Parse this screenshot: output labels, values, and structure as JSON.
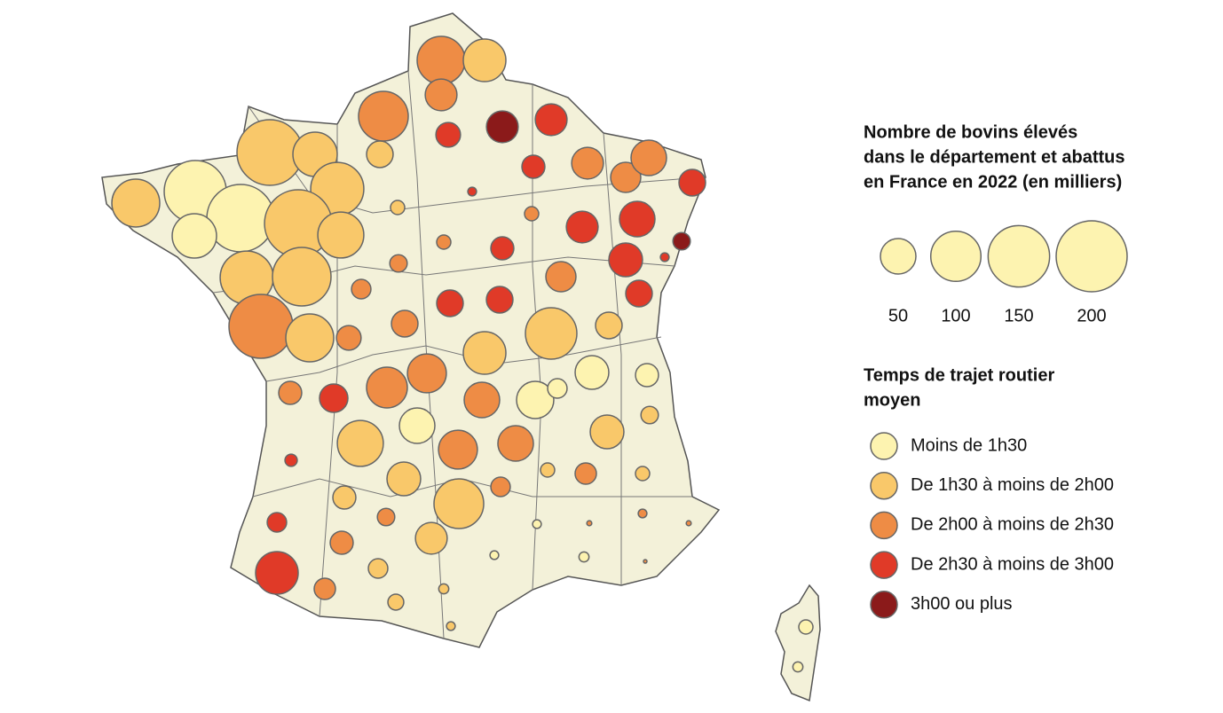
{
  "legend_size": {
    "title": [
      "Nombre de bovins élevés",
      "dans le département et abattus",
      "en France en 2022 (en milliers)"
    ],
    "values": [
      50,
      100,
      150,
      200
    ],
    "color": "#fdf3b0"
  },
  "legend_color": {
    "title": [
      "Temps de trajet routier",
      "moyen"
    ],
    "categories": [
      {
        "label": "Moins de 1h30",
        "color": "#fdf3b0"
      },
      {
        "label": "De 1h30 à moins de 2h00",
        "color": "#f9c86a"
      },
      {
        "label": "De 2h00 à moins de 2h30",
        "color": "#ee8c45"
      },
      {
        "label": "De 2h30 à moins de 3h00",
        "color": "#e03a28"
      },
      {
        "label": "3h00 ou plus",
        "color": "#8b1a1a"
      }
    ]
  },
  "bubbles": [
    {
      "value": 91,
      "category": 2
    },
    {
      "value": 72,
      "category": 1
    },
    {
      "value": 40,
      "category": 2
    },
    {
      "value": 98,
      "category": 2
    },
    {
      "value": 24,
      "category": 3
    },
    {
      "value": 40,
      "category": 4
    },
    {
      "value": 40,
      "category": 3
    },
    {
      "value": 28,
      "category": 1
    },
    {
      "value": 171,
      "category": 1
    },
    {
      "value": 78,
      "category": 1
    },
    {
      "value": 91,
      "category": 1
    },
    {
      "value": 153,
      "category": 0
    },
    {
      "value": 112,
      "category": 1
    },
    {
      "value": 180,
      "category": 0
    },
    {
      "value": 180,
      "category": 1
    },
    {
      "value": 84,
      "category": 1
    },
    {
      "value": 78,
      "category": 0
    },
    {
      "value": 112,
      "category": 1
    },
    {
      "value": 136,
      "category": 1
    },
    {
      "value": 162,
      "category": 2
    },
    {
      "value": 91,
      "category": 1
    },
    {
      "value": 24,
      "category": 2
    },
    {
      "value": 21,
      "category": 3
    },
    {
      "value": 40,
      "category": 2
    },
    {
      "value": 36,
      "category": 2
    },
    {
      "value": 50,
      "category": 2
    },
    {
      "value": 28,
      "category": 3
    },
    {
      "value": 8,
      "category": 1
    },
    {
      "value": 3,
      "category": 3
    },
    {
      "value": 8,
      "category": 2
    },
    {
      "value": 40,
      "category": 3
    },
    {
      "value": 50,
      "category": 3
    },
    {
      "value": 12,
      "category": 4
    },
    {
      "value": 3,
      "category": 3
    },
    {
      "value": 8,
      "category": 2
    },
    {
      "value": 21,
      "category": 3
    },
    {
      "value": 12,
      "category": 2
    },
    {
      "value": 45,
      "category": 3
    },
    {
      "value": 36,
      "category": 2
    },
    {
      "value": 15,
      "category": 2
    },
    {
      "value": 28,
      "category": 3
    },
    {
      "value": 28,
      "category": 3
    },
    {
      "value": 28,
      "category": 3
    },
    {
      "value": 28,
      "category": 2
    },
    {
      "value": 105,
      "category": 1
    },
    {
      "value": 28,
      "category": 1
    },
    {
      "value": 72,
      "category": 1
    },
    {
      "value": 60,
      "category": 2
    },
    {
      "value": 66,
      "category": 2
    },
    {
      "value": 32,
      "category": 3
    },
    {
      "value": 21,
      "category": 2
    },
    {
      "value": 55,
      "category": 0
    },
    {
      "value": 15,
      "category": 0
    },
    {
      "value": 45,
      "category": 0
    },
    {
      "value": 21,
      "category": 0
    },
    {
      "value": 50,
      "category": 2
    },
    {
      "value": 50,
      "category": 0
    },
    {
      "value": 84,
      "category": 1
    },
    {
      "value": 60,
      "category": 2
    },
    {
      "value": 50,
      "category": 2
    },
    {
      "value": 45,
      "category": 1
    },
    {
      "value": 12,
      "category": 1
    },
    {
      "value": 6,
      "category": 3
    },
    {
      "value": 45,
      "category": 1
    },
    {
      "value": 15,
      "category": 2
    },
    {
      "value": 8,
      "category": 1
    },
    {
      "value": 18,
      "category": 2
    },
    {
      "value": 8,
      "category": 1
    },
    {
      "value": 21,
      "category": 1
    },
    {
      "value": 98,
      "category": 1
    },
    {
      "value": 15,
      "category": 3
    },
    {
      "value": 12,
      "category": 2
    },
    {
      "value": 3,
      "category": 0
    },
    {
      "value": 1,
      "category": 2
    },
    {
      "value": 3,
      "category": 2
    },
    {
      "value": 1,
      "category": 2
    },
    {
      "value": 21,
      "category": 2
    },
    {
      "value": 40,
      "category": 1
    },
    {
      "value": 3,
      "category": 0
    },
    {
      "value": 4,
      "category": 0
    },
    {
      "value": 0.5,
      "category": 2
    },
    {
      "value": 72,
      "category": 3
    },
    {
      "value": 15,
      "category": 1
    },
    {
      "value": 4,
      "category": 1
    },
    {
      "value": 18,
      "category": 2
    },
    {
      "value": 10,
      "category": 1
    },
    {
      "value": 3,
      "category": 1
    },
    {
      "value": 8,
      "category": 0
    },
    {
      "value": 4,
      "category": 0
    }
  ]
}
